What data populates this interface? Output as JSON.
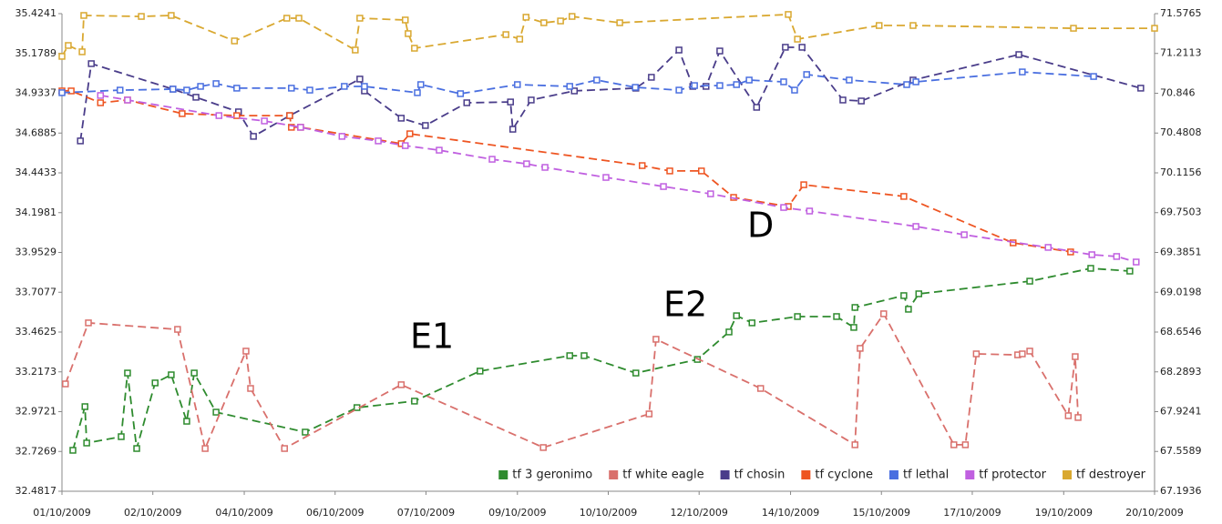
{
  "chart_data": {
    "type": "line",
    "xlim": [
      0,
      19
    ],
    "xticks": [
      {
        "value": 0,
        "label": "01/10/2009"
      },
      {
        "value": 1.58,
        "label": "02/10/2009"
      },
      {
        "value": 3.17,
        "label": "04/10/2009"
      },
      {
        "value": 4.75,
        "label": "06/10/2009"
      },
      {
        "value": 6.33,
        "label": "07/10/2009"
      },
      {
        "value": 7.92,
        "label": "09/10/2009"
      },
      {
        "value": 9.5,
        "label": "10/10/2009"
      },
      {
        "value": 11.08,
        "label": "12/10/2009"
      },
      {
        "value": 12.67,
        "label": "14/10/2009"
      },
      {
        "value": 14.25,
        "label": "15/10/2009"
      },
      {
        "value": 15.83,
        "label": "17/10/2009"
      },
      {
        "value": 17.42,
        "label": "19/10/2009"
      },
      {
        "value": 19,
        "label": "20/10/2009"
      }
    ],
    "ylim": [
      32.4817,
      35.4241
    ],
    "yticks": [
      32.4817,
      32.7269,
      32.9721,
      33.2173,
      33.4625,
      33.7077,
      33.9529,
      34.1981,
      34.4433,
      34.6885,
      34.9337,
      35.1789,
      35.4241
    ],
    "y2lim": [
      67.1936,
      71.5765
    ],
    "y2ticks": [
      67.1936,
      67.5589,
      67.9241,
      68.2893,
      68.6546,
      69.0198,
      69.3851,
      69.7503,
      70.1156,
      70.4808,
      70.846,
      71.2113,
      71.5765
    ],
    "annotations": [
      "D",
      "E1",
      "E2"
    ],
    "legend": "lower right",
    "series": [
      {
        "name": "tf 3 geronimo",
        "color": "#2e8b2e",
        "x": [
          0.19,
          0.4,
          0.43,
          1.03,
          1.14,
          1.3,
          1.62,
          1.9,
          2.17,
          2.3,
          2.68,
          4.23,
          5.13,
          6.13,
          7.27,
          8.83,
          9.08,
          9.98,
          11.05,
          11.6,
          11.73,
          12.0,
          12.79,
          13.47,
          13.77,
          13.79,
          14.64,
          14.72,
          14.9,
          16.83,
          17.89,
          18.57
        ],
        "values": [
          32.734,
          33.003,
          32.779,
          32.818,
          33.21,
          32.745,
          33.149,
          33.199,
          32.913,
          33.21,
          32.969,
          32.846,
          32.997,
          33.037,
          33.222,
          33.317,
          33.317,
          33.21,
          33.294,
          33.463,
          33.563,
          33.519,
          33.558,
          33.558,
          33.491,
          33.614,
          33.687,
          33.603,
          33.698,
          33.776,
          33.855,
          33.838
        ]
      },
      {
        "name": "tf white eagle",
        "color": "#d9706c",
        "x": [
          0.06,
          0.46,
          2.01,
          2.49,
          3.2,
          3.28,
          3.87,
          5.9,
          8.37,
          10.21,
          10.33,
          12.15,
          13.79,
          13.88,
          14.29,
          15.51,
          15.71,
          15.9,
          16.62,
          16.7,
          16.83,
          17.5,
          17.62,
          17.67
        ],
        "values": [
          33.143,
          33.519,
          33.479,
          32.745,
          33.345,
          33.115,
          32.745,
          33.138,
          32.751,
          32.958,
          33.418,
          33.115,
          32.768,
          33.362,
          33.575,
          32.768,
          32.768,
          33.328,
          33.322,
          33.328,
          33.345,
          32.947,
          33.311,
          32.936
        ]
      },
      {
        "name": "tf chosin",
        "color": "#4a3d8a",
        "x": [
          0.32,
          0.51,
          1.93,
          2.33,
          3.07,
          3.33,
          3.96,
          5.18,
          5.26,
          5.9,
          6.32,
          7.04,
          7.8,
          7.84,
          8.16,
          8.91,
          9.98,
          10.25,
          10.73,
          10.97,
          11.2,
          11.44,
          12.08,
          12.58,
          12.87,
          13.58,
          13.9,
          14.8,
          16.64,
          18.76
        ],
        "values": [
          34.64,
          35.116,
          34.959,
          34.909,
          34.819,
          34.668,
          34.796,
          35.021,
          34.948,
          34.78,
          34.735,
          34.875,
          34.88,
          34.712,
          34.892,
          34.948,
          34.965,
          35.032,
          35.2,
          34.976,
          34.976,
          35.194,
          34.847,
          35.217,
          35.217,
          34.892,
          34.886,
          35.015,
          35.172,
          34.965
        ]
      },
      {
        "name": "tf cyclone",
        "color": "#ee5522",
        "x": [
          0,
          0.16,
          0.67,
          1.14,
          2.09,
          3.04,
          3.96,
          3.99,
          4.15,
          5.9,
          6.05,
          10.09,
          10.57,
          11.12,
          11.68,
          12.63,
          12.9,
          14.64,
          16.54,
          17.54
        ],
        "values": [
          34.948,
          34.948,
          34.875,
          34.892,
          34.808,
          34.796,
          34.796,
          34.724,
          34.724,
          34.623,
          34.684,
          34.488,
          34.455,
          34.455,
          34.292,
          34.236,
          34.37,
          34.298,
          34.012,
          33.956
        ]
      },
      {
        "name": "tf lethal",
        "color": "#4a6fe0",
        "x": [
          0,
          1.01,
          1.93,
          2.17,
          2.41,
          2.68,
          3.04,
          3.99,
          4.31,
          4.91,
          5.26,
          6.18,
          6.24,
          6.93,
          7.92,
          8.83,
          9.3,
          9.97,
          10.73,
          11.0,
          11.44,
          11.73,
          11.95,
          12.55,
          12.74,
          12.95,
          13.69,
          14.69,
          14.85,
          16.7,
          17.94
        ],
        "values": [
          34.937,
          34.953,
          34.959,
          34.953,
          34.976,
          34.993,
          34.965,
          34.965,
          34.953,
          34.976,
          34.976,
          34.937,
          34.987,
          34.931,
          34.987,
          34.976,
          35.015,
          34.97,
          34.953,
          34.981,
          34.981,
          34.987,
          35.015,
          35.004,
          34.953,
          35.049,
          35.015,
          34.987,
          35.004,
          35.065,
          35.037
        ]
      },
      {
        "name": "tf protector",
        "color": "#c060e0",
        "x": [
          0.67,
          1.14,
          2.73,
          3.52,
          4.15,
          4.87,
          5.5,
          5.97,
          6.56,
          7.48,
          8.08,
          8.4,
          9.46,
          10.46,
          11.28,
          12.55,
          13.0,
          14.85,
          15.69,
          17.15,
          17.91,
          18.34,
          18.68
        ],
        "values": [
          34.92,
          34.892,
          34.796,
          34.763,
          34.724,
          34.668,
          34.64,
          34.611,
          34.583,
          34.527,
          34.499,
          34.477,
          34.415,
          34.359,
          34.314,
          34.23,
          34.208,
          34.113,
          34.062,
          33.984,
          33.939,
          33.928,
          33.894
        ]
      },
      {
        "name": "tf destroyer",
        "color": "#d9a830",
        "x": [
          0,
          0.11,
          0.35,
          0.38,
          1.38,
          1.9,
          3.0,
          3.91,
          4.12,
          5.1,
          5.18,
          5.97,
          6.02,
          6.13,
          7.72,
          7.96,
          8.07,
          8.38,
          8.67,
          8.87,
          9.7,
          12.63,
          12.79,
          14.21,
          14.8,
          17.59,
          19.0
        ],
        "values": [
          35.161,
          35.228,
          35.189,
          35.413,
          35.407,
          35.413,
          35.256,
          35.396,
          35.396,
          35.2,
          35.396,
          35.385,
          35.301,
          35.211,
          35.295,
          35.267,
          35.402,
          35.368,
          35.379,
          35.407,
          35.368,
          35.419,
          35.267,
          35.351,
          35.351,
          35.334,
          35.334
        ]
      }
    ]
  }
}
